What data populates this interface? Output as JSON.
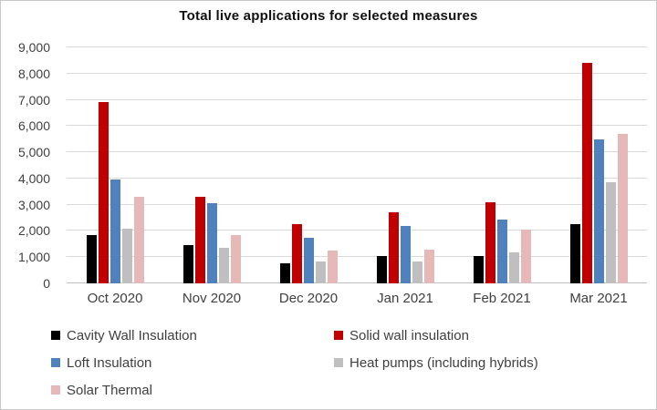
{
  "chart_data": {
    "type": "bar",
    "title": "Total live applications for selected measures",
    "categories": [
      "Oct 2020",
      "Nov 2020",
      "Dec 2020",
      "Jan 2021",
      "Feb 2021",
      "Mar 2021"
    ],
    "series": [
      {
        "name": "Cavity Wall Insulation",
        "color": "#000000",
        "values": [
          1850,
          1450,
          750,
          1050,
          1050,
          2250
        ]
      },
      {
        "name": "Solid wall insulation",
        "color": "#c00000",
        "values": [
          6900,
          3300,
          2250,
          2700,
          3100,
          8400
        ]
      },
      {
        "name": "Loft Insulation",
        "color": "#4f81bd",
        "values": [
          3950,
          3050,
          1750,
          2200,
          2450,
          5500
        ]
      },
      {
        "name": "Heat pumps (including hybrids)",
        "color": "#bfbfbf",
        "values": [
          2100,
          1350,
          850,
          850,
          1200,
          3850
        ]
      },
      {
        "name": "Solar Thermal",
        "color": "#e6b9b8",
        "values": [
          3300,
          1850,
          1250,
          1300,
          2050,
          5700
        ]
      }
    ],
    "ylim": [
      0,
      9000
    ],
    "ytick_step": 1000,
    "ytick_labels": [
      "0",
      "1,000",
      "2,000",
      "3,000",
      "4,000",
      "5,000",
      "6,000",
      "7,000",
      "8,000",
      "9,000"
    ],
    "xlabel": "",
    "ylabel": "",
    "grid": true,
    "legend_position": "bottom-left-two-columns"
  },
  "colors": {
    "gridline": "#d9d9d9",
    "axis_text": "#404040",
    "title_text": "#111111",
    "chart_border": "#c9c9c9",
    "background": "#ffffff"
  }
}
